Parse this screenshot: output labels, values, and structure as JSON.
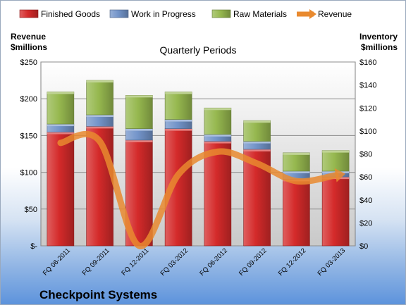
{
  "chart_data": {
    "type": "bar",
    "title": "Quarterly Periods",
    "company": "Checkpoint Systems",
    "left_axis_label": [
      "Revenue",
      "$millions"
    ],
    "right_axis_label": [
      "Inventory",
      "$millions"
    ],
    "left_ylim": [
      0,
      250
    ],
    "right_ylim": [
      0,
      160
    ],
    "left_ticks": [
      "$-",
      "$50",
      "$100",
      "$150",
      "$200",
      "$250"
    ],
    "right_ticks": [
      "$0",
      "$20",
      "$40",
      "$60",
      "$80",
      "$100",
      "$120",
      "$140",
      "$160"
    ],
    "grid": true,
    "legend_position": "top",
    "categories": [
      "FQ 06-2011",
      "FQ 09-2011",
      "FQ 12-2011",
      "FQ 03-2012",
      "FQ 06-2012",
      "FQ 09-2012",
      "FQ 12-2012",
      "FQ 03-2013"
    ],
    "series": [
      {
        "name": "Finished Goods",
        "kind": "stacked-bar",
        "axis": "right",
        "color": "#d42a2a",
        "values": [
          99,
          104,
          92,
          102,
          91,
          84,
          58,
          60
        ]
      },
      {
        "name": "Work in Progress",
        "kind": "stacked-bar",
        "axis": "right",
        "color": "#7394c9",
        "values": [
          7,
          10,
          10,
          8,
          6,
          7,
          7,
          5
        ]
      },
      {
        "name": "Raw Materials",
        "kind": "stacked-bar",
        "axis": "right",
        "color": "#96b84f",
        "values": [
          28,
          30,
          29,
          24,
          23,
          18,
          16,
          18
        ]
      },
      {
        "name": "Revenue",
        "kind": "line",
        "axis": "left",
        "color": "#e98a2f",
        "values": [
          140,
          142,
          0,
          97,
          128,
          112,
          88,
          96
        ]
      }
    ]
  }
}
